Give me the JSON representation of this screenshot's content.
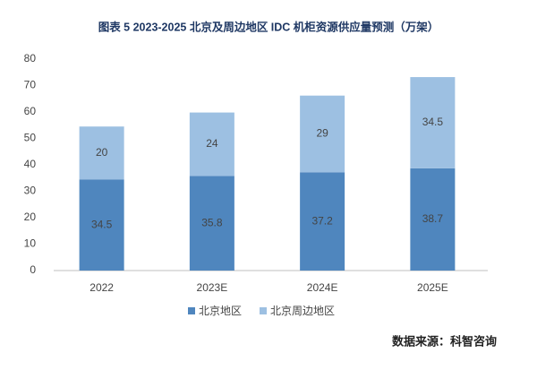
{
  "chart_data": {
    "type": "bar",
    "stacked": true,
    "title": "图表 5 2023-2025 北京及周边地区 IDC 机柜资源供应量预测（万架）",
    "categories": [
      "2022",
      "2023E",
      "2024E",
      "2025E"
    ],
    "series": [
      {
        "name": "北京地区",
        "color": "#4f86be",
        "values": [
          34.5,
          35.8,
          37.2,
          38.7
        ]
      },
      {
        "name": "北京周边地区",
        "color": "#9dc0e2",
        "values": [
          20,
          24,
          29,
          34.5
        ]
      }
    ],
    "ylim": [
      0,
      80
    ],
    "yticks": [
      0,
      10,
      20,
      30,
      40,
      50,
      60,
      70,
      80
    ],
    "grid": false,
    "legend": "bottom",
    "source": "数据来源：科智咨询"
  }
}
